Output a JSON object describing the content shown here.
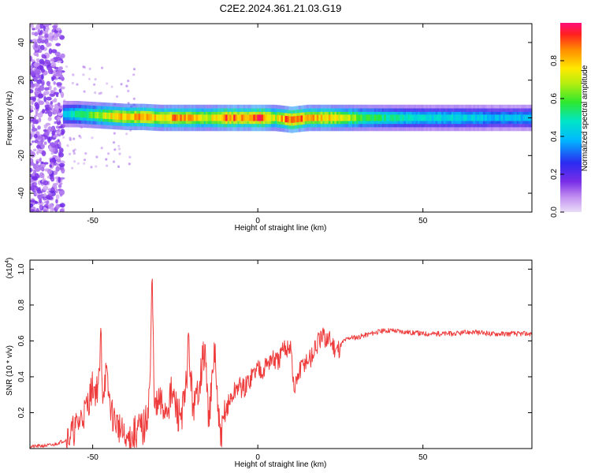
{
  "title": "C2E2.2024.361.21.03.G19",
  "chart_data": [
    {
      "type": "heatmap",
      "xlabel": "Height of straight line (km)",
      "ylabel": "Frequency (Hz)",
      "xlim": [
        -69,
        83
      ],
      "ylim": [
        -50,
        50
      ],
      "xticks": [
        -50,
        0,
        50
      ],
      "yticks": [
        -40,
        -20,
        0,
        20,
        40
      ],
      "colorbar": {
        "label": "Normalized spectral amplitude",
        "range": [
          0,
          1
        ],
        "ticks": [
          "0.0",
          "0.2",
          "0.4",
          "0.6",
          "0.8"
        ]
      },
      "ridge": {
        "x": [
          -59,
          -55,
          -50,
          -45,
          -40,
          -35,
          -30,
          -25,
          -20,
          -15,
          -10,
          -5,
          0,
          5,
          10,
          15,
          20,
          25,
          30,
          40,
          50,
          60,
          70,
          83
        ],
        "freq": [
          2,
          2,
          1.5,
          1,
          0.5,
          0.5,
          0,
          0,
          0,
          0,
          0,
          0,
          0,
          0,
          -1,
          0,
          0,
          0,
          0,
          0,
          0,
          0,
          0,
          0
        ],
        "amplitude": [
          0.4,
          0.5,
          0.6,
          0.75,
          0.8,
          0.85,
          0.75,
          0.85,
          0.8,
          0.7,
          0.9,
          0.85,
          0.95,
          0.7,
          0.95,
          0.8,
          0.8,
          0.75,
          0.6,
          0.5,
          0.45,
          0.45,
          0.4,
          0.4
        ]
      }
    },
    {
      "type": "line",
      "xlabel": "Height of straight line (km)",
      "ylabel": "SNR (10 * v/v)",
      "yscale_label": "(x10",
      "yscale_exp": "4",
      "yscale_close": ")",
      "xlim": [
        -69,
        83
      ],
      "ylim": [
        0,
        1.05
      ],
      "xticks": [
        -50,
        0,
        50
      ],
      "yticks": [
        0.2,
        0.4,
        0.6,
        0.8,
        1.0
      ],
      "series": [
        {
          "color": "#ee3b3b",
          "x": [
            -69,
            -62,
            -58,
            -55,
            -52,
            -51,
            -50,
            -49,
            -48,
            -47.5,
            -47,
            -46,
            -45,
            -44,
            -43,
            -42,
            -41,
            -40,
            -38,
            -36,
            -34,
            -33,
            -32.5,
            -32,
            -31.5,
            -31,
            -30,
            -28,
            -26,
            -24,
            -22,
            -21,
            -20,
            -19,
            -18,
            -16,
            -15,
            -14,
            -13,
            -12,
            -11,
            -10,
            -8,
            -6,
            -4,
            -2,
            0,
            2,
            4,
            6,
            8,
            10,
            11,
            12,
            14,
            16,
            18,
            20,
            22,
            24,
            26,
            28,
            30,
            32,
            36,
            40,
            45,
            50,
            55,
            60,
            65,
            70,
            75,
            80,
            83
          ],
          "y": [
            0.01,
            0.02,
            0.05,
            0.12,
            0.22,
            0.28,
            0.35,
            0.32,
            0.38,
            0.67,
            0.3,
            0.42,
            0.28,
            0.18,
            0.15,
            0.12,
            0.08,
            0.04,
            0.06,
            0.1,
            0.12,
            0.28,
            0.45,
            0.98,
            0.4,
            0.2,
            0.25,
            0.22,
            0.3,
            0.18,
            0.25,
            0.6,
            0.3,
            0.22,
            0.35,
            0.55,
            0.2,
            0.3,
            0.57,
            0.15,
            0.05,
            0.2,
            0.28,
            0.35,
            0.33,
            0.4,
            0.45,
            0.45,
            0.5,
            0.48,
            0.55,
            0.58,
            0.3,
            0.4,
            0.48,
            0.5,
            0.58,
            0.62,
            0.6,
            0.55,
            0.6,
            0.62,
            0.62,
            0.63,
            0.65,
            0.66,
            0.65,
            0.64,
            0.64,
            0.64,
            0.65,
            0.64,
            0.64,
            0.64,
            0.64
          ]
        }
      ]
    }
  ]
}
